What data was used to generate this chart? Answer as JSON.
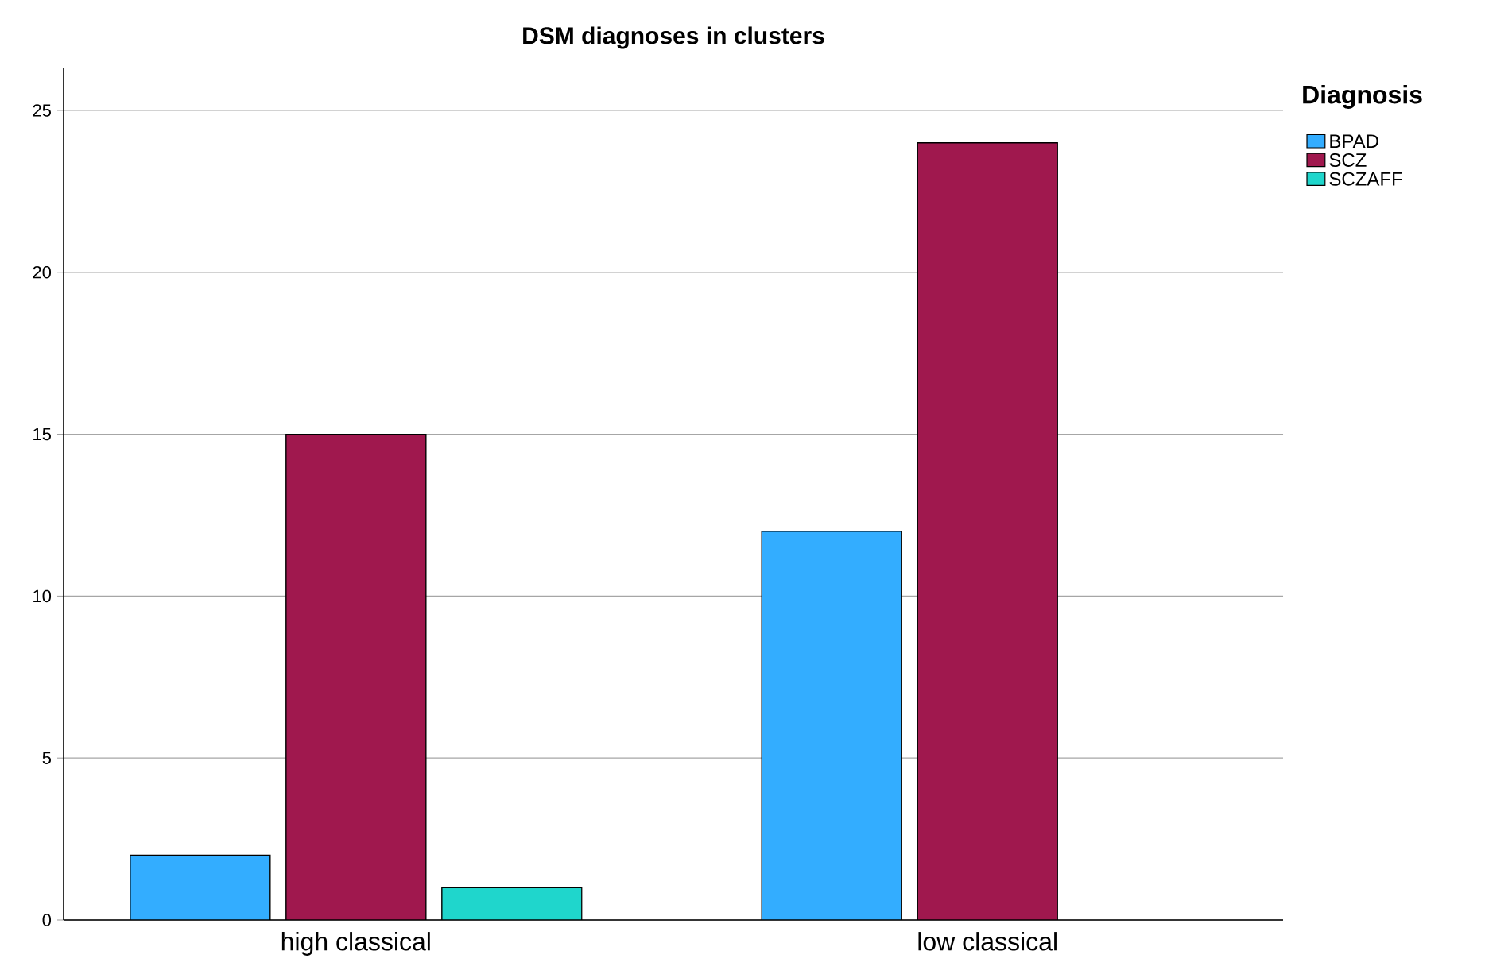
{
  "chart_data": {
    "type": "bar",
    "title": "DSM diagnoses in clusters",
    "legend_title": "Diagnosis",
    "categories": [
      "high classical",
      "low classical"
    ],
    "series": [
      {
        "name": "BPAD",
        "color": "#33adff",
        "values": [
          2,
          12
        ]
      },
      {
        "name": "SCZ",
        "color": "#a0184e",
        "values": [
          15,
          24
        ]
      },
      {
        "name": "SCZAFF",
        "color": "#1fd6cc",
        "values": [
          1,
          null
        ]
      }
    ],
    "ylim": [
      0,
      26.3
    ],
    "yticks": [
      0,
      5,
      10,
      15,
      20,
      25
    ],
    "grid": "y",
    "legend": "top right"
  }
}
